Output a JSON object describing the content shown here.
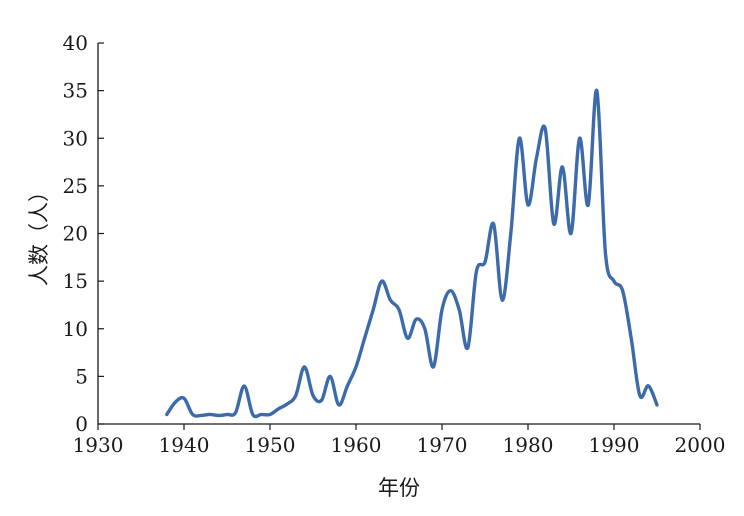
{
  "chart_data": {
    "type": "line",
    "xlabel": "年份",
    "ylabel": "人数（人）",
    "xlim": [
      1930,
      2000
    ],
    "ylim": [
      0,
      40
    ],
    "x_ticks": [
      1930,
      1940,
      1950,
      1960,
      1970,
      1980,
      1990,
      2000
    ],
    "y_ticks": [
      0,
      5,
      10,
      15,
      20,
      25,
      30,
      35,
      40
    ],
    "grid": false,
    "line_color": "#3d6aab",
    "series": [
      {
        "x": [
          1938,
          1939,
          1940,
          1941,
          1942,
          1943,
          1944,
          1945,
          1946,
          1947,
          1948,
          1949,
          1950,
          1951,
          1952,
          1953,
          1954,
          1955,
          1956,
          1957,
          1958,
          1959,
          1960,
          1961,
          1962,
          1963,
          1964,
          1965,
          1966,
          1967,
          1968,
          1969,
          1970,
          1971,
          1972,
          1973,
          1974,
          1975,
          1976,
          1977,
          1978,
          1979,
          1980,
          1981,
          1982,
          1983,
          1984,
          1985,
          1986,
          1987,
          1988,
          1989,
          1990,
          1991,
          1992,
          1993,
          1994,
          1995
        ],
        "y": [
          1,
          2.3,
          2.7,
          1,
          0.9,
          1,
          0.9,
          1,
          1.2,
          4,
          1,
          1,
          1,
          1.6,
          2.1,
          3,
          6,
          3,
          2.5,
          5,
          2,
          4,
          6,
          9,
          12,
          15,
          13,
          12,
          9,
          11,
          10,
          6,
          12,
          14,
          12,
          8,
          16,
          17,
          21,
          13,
          20,
          30,
          23,
          28,
          31,
          21,
          27,
          20,
          30,
          23,
          35,
          18,
          15,
          14,
          9,
          3,
          4,
          2
        ]
      }
    ]
  }
}
